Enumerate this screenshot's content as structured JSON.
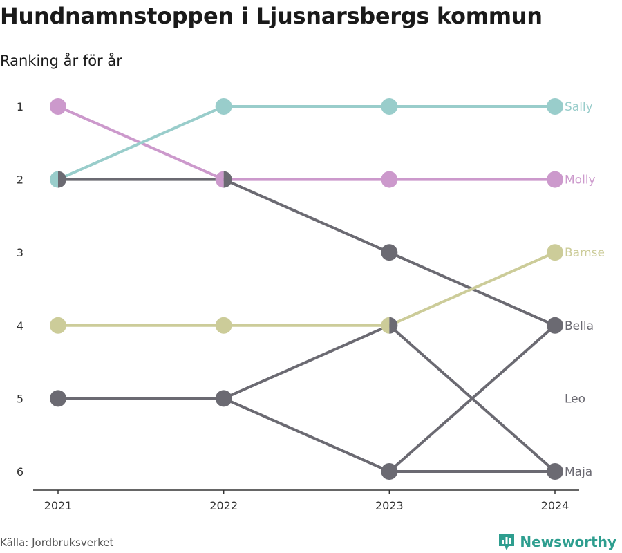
{
  "header": {
    "title": "Hundnamnstoppen i Ljusnarsbergs kommun",
    "subtitle": "Ranking år för år"
  },
  "footer": {
    "source": "Källa: Jordbruksverket",
    "brand": "Newsworthy"
  },
  "colors": {
    "Sally": "#99cdcb",
    "Molly": "#cc99cc",
    "Bamse": "#cccc99",
    "Bella": "#6b6a72",
    "Leo": "#6b6a72",
    "Maja": "#6b6a72",
    "axis": "#333333",
    "brand": "#2e9e8f"
  },
  "chart_data": {
    "type": "line",
    "subtype": "bump",
    "x": [
      "2021",
      "2022",
      "2023",
      "2024"
    ],
    "y_ticks": [
      1,
      2,
      3,
      4,
      5,
      6
    ],
    "y_reversed": true,
    "grid": false,
    "series": [
      {
        "name": "Bella",
        "values": [
          2,
          2,
          3,
          4
        ]
      },
      {
        "name": "Leo",
        "values": [
          5,
          5,
          4,
          6
        ]
      },
      {
        "name": "Maja",
        "values": [
          5,
          5,
          6,
          6
        ]
      },
      {
        "name": "Bamse",
        "values": [
          4,
          4,
          4,
          3
        ]
      },
      {
        "name": "Molly",
        "values": [
          1,
          2,
          2,
          2
        ]
      },
      {
        "name": "Sally",
        "values": [
          2,
          1,
          1,
          1
        ]
      }
    ],
    "extra_lines": [
      {
        "from": [
          2023,
          6
        ],
        "to": [
          2024,
          4
        ],
        "color": "#6b6a72"
      }
    ],
    "end_labels": [
      {
        "text": "Sally",
        "rank": 1,
        "series": "Sally"
      },
      {
        "text": "Molly",
        "rank": 2,
        "series": "Molly"
      },
      {
        "text": "Bamse",
        "rank": 3,
        "series": "Bamse"
      },
      {
        "text": "Bella",
        "rank": 4,
        "series": "Bella"
      },
      {
        "text": "Leo",
        "rank": 5,
        "series": "Leo"
      },
      {
        "text": "Maja",
        "rank": 6,
        "series": "Maja"
      }
    ]
  }
}
